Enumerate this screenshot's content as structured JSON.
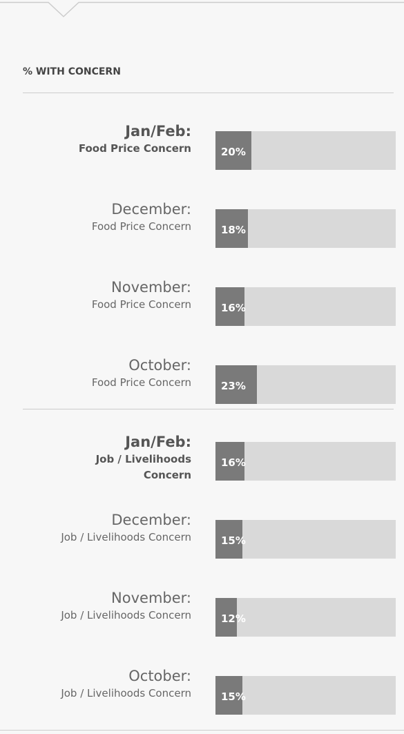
{
  "chart_data": {
    "type": "bar",
    "title": "% WITH CONCERN",
    "xlim": [
      0,
      100
    ],
    "color": "#7a7a7a",
    "track_color": "#d9d9d9",
    "groups": [
      {
        "categories": [
          "Jan/Feb:",
          "December:",
          "November:",
          "October:"
        ],
        "labels": [
          "Food Price Concern",
          "Food Price Concern",
          "Food Price Concern",
          "Food Price Concern"
        ],
        "values": [
          20,
          18,
          16,
          23
        ],
        "value_labels": [
          "20%",
          "18%",
          "16%",
          "23%"
        ]
      },
      {
        "categories": [
          "Jan/Feb:",
          "December:",
          "November:",
          "October:"
        ],
        "labels": [
          "Job / Livelihoods Concern",
          "Job / Livelihoods Concern",
          "Job / Livelihoods Concern",
          "Job / Livelihoods Concern"
        ],
        "values": [
          16,
          15,
          12,
          15
        ],
        "value_labels": [
          "16%",
          "15%",
          "12%",
          "15%"
        ]
      }
    ]
  }
}
